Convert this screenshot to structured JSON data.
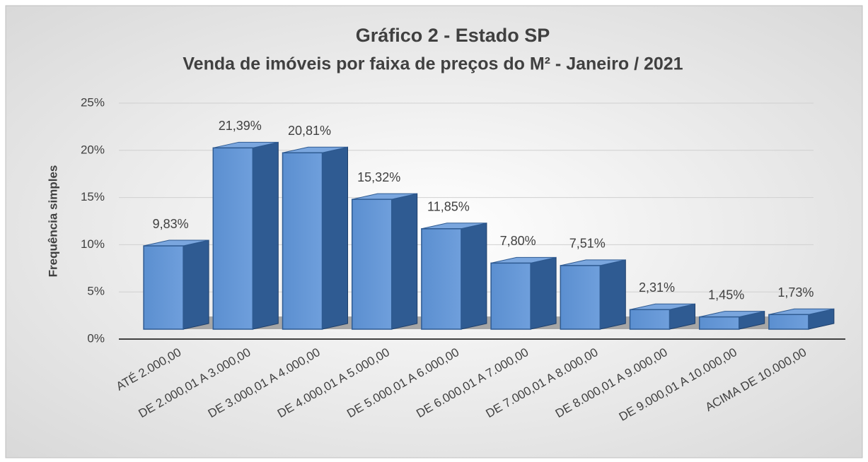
{
  "chart_data": {
    "type": "bar3d",
    "title": "Gráfico 2 - Estado SP",
    "subtitle": "Venda de imóveis por faixa de preços do M²  - Janeiro / 2021",
    "y_label": "Frequência simples",
    "categories": [
      "ATÉ 2.000,00",
      "DE 2.000,01 A 3.000,00",
      "DE 3.000,01 A 4.000,00",
      "DE 4.000,01 A 5.000,00",
      "DE 5.000,01 A 6.000,00",
      "DE 6.000,01 A 7.000,00",
      "DE 7.000,01 A 8.000,00",
      "DE 8.000,01 A 9.000,00",
      "DE 9.000,01 A 10.000,00",
      "ACIMA DE 10.000,00"
    ],
    "values": [
      9.83,
      21.39,
      20.81,
      15.32,
      11.85,
      7.8,
      7.51,
      2.31,
      1.45,
      1.73
    ],
    "value_labels": [
      "9,83%",
      "21,39%",
      "20,81%",
      "15,32%",
      "11,85%",
      "7,80%",
      "7,51%",
      "2,31%",
      "1,45%",
      "1,73%"
    ],
    "color": "#4f81bd",
    "ylim": [
      0,
      25
    ],
    "yticks": [
      {
        "value": 0,
        "label": "0%"
      },
      {
        "value": 5,
        "label": "5%"
      },
      {
        "value": 10,
        "label": "10%"
      },
      {
        "value": 15,
        "label": "15%"
      },
      {
        "value": 20,
        "label": "20%"
      },
      {
        "value": 25,
        "label": "25%"
      }
    ],
    "grid": true
  }
}
